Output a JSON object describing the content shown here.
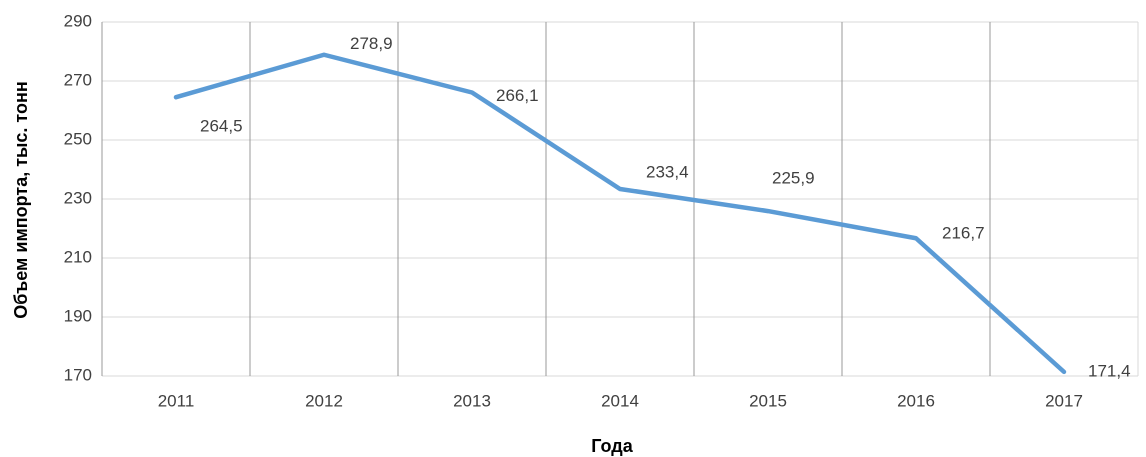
{
  "chart_data": {
    "type": "line",
    "x_label": "Года",
    "y_label": "Объем импорта, тыс. тонн",
    "categories": [
      "2011",
      "2012",
      "2013",
      "2014",
      "2015",
      "2016",
      "2017"
    ],
    "series": [
      {
        "name": "Объем импорта",
        "color": "#5b9bd5",
        "values": [
          264.5,
          278.9,
          266.1,
          233.4,
          225.9,
          216.7,
          171.4
        ],
        "value_labels": [
          "264,5",
          "278,9",
          "266,1",
          "233,4",
          "225,9",
          "216,7",
          "171,4"
        ]
      }
    ],
    "ylim": [
      170,
      290
    ],
    "yticks": [
      170,
      190,
      210,
      230,
      250,
      270,
      290
    ],
    "grid": true
  }
}
